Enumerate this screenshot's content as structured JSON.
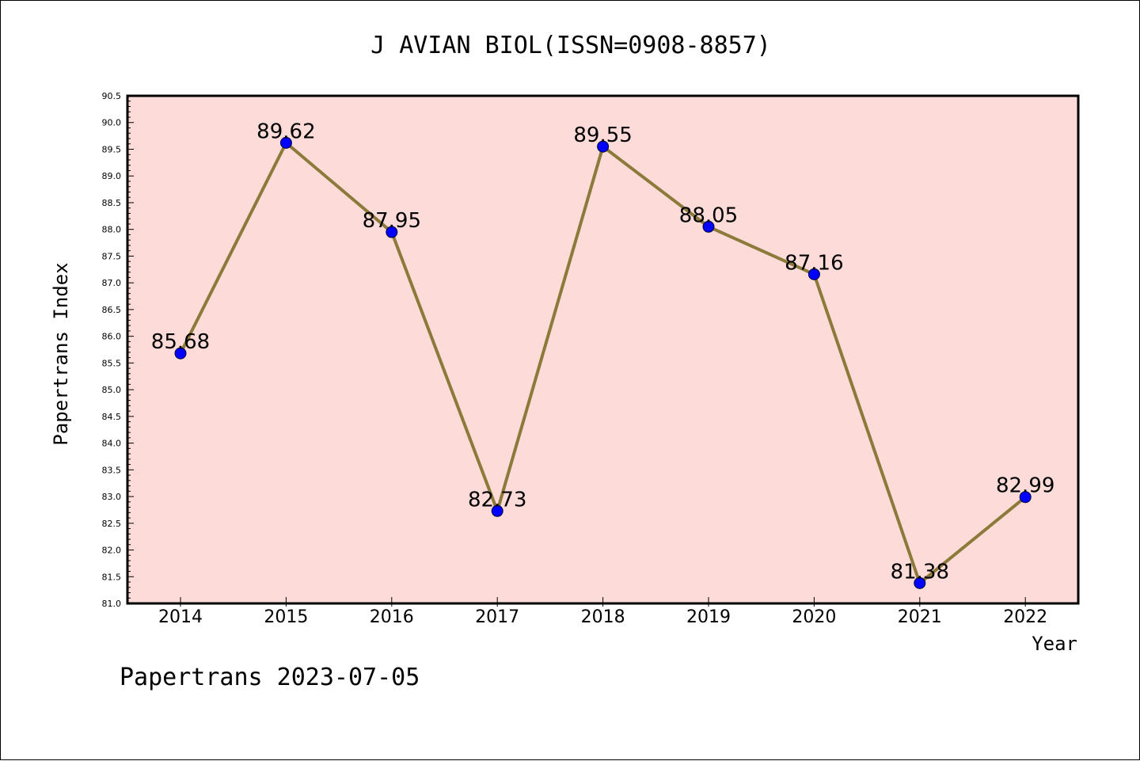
{
  "chart_data": {
    "type": "line",
    "title": "J AVIAN BIOL(ISSN=0908-8857)",
    "xlabel": "Year",
    "ylabel": "Papertrans Index",
    "categories": [
      "2014",
      "2015",
      "2016",
      "2017",
      "2018",
      "2019",
      "2020",
      "2021",
      "2022"
    ],
    "series": [
      {
        "values": [
          85.68,
          89.62,
          87.95,
          82.73,
          89.55,
          88.05,
          87.16,
          81.38,
          82.99
        ],
        "labels": [
          "85.68",
          "89.62",
          "87.95",
          "82.73",
          "89.55",
          "88.05",
          "87.16",
          "81.38",
          "82.99"
        ]
      }
    ],
    "ylim": [
      81.0,
      90.5
    ],
    "yticks": [
      "81.0",
      "81.5",
      "82.0",
      "82.5",
      "83.0",
      "83.5",
      "84.0",
      "84.5",
      "85.0",
      "85.5",
      "86.0",
      "86.5",
      "87.0",
      "87.5",
      "88.0",
      "88.5",
      "89.0",
      "89.5",
      "90.0",
      "90.5"
    ],
    "grid": false,
    "legend": "none"
  },
  "footer": "Papertrans 2023-07-05",
  "colors": {
    "plot_background": "#fddbd8",
    "line": "#8b7a3a",
    "marker": "#0000ff",
    "axis": "#000000"
  }
}
